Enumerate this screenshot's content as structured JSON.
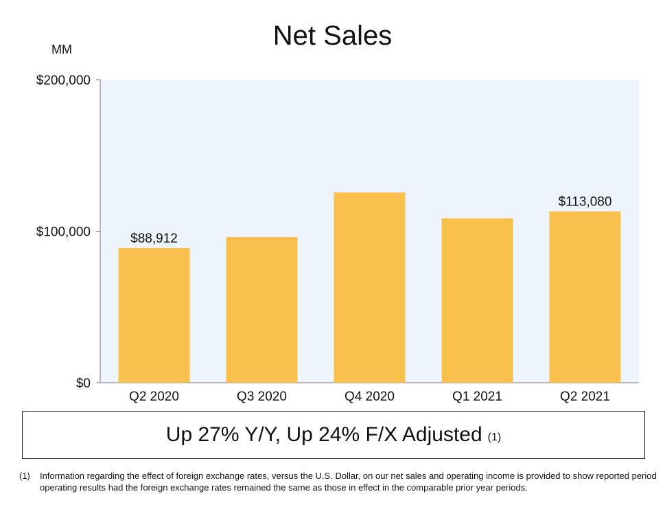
{
  "header": {
    "title": "Net Sales",
    "unit_label": "MM"
  },
  "chart_data": {
    "type": "bar",
    "title": "Net Sales",
    "xlabel": "",
    "ylabel": "MM",
    "categories": [
      "Q2 2020",
      "Q3 2020",
      "Q4 2020",
      "Q1 2021",
      "Q2 2021"
    ],
    "values": [
      88912,
      96145,
      125555,
      108518,
      113080
    ],
    "data_labels": [
      "$88,912",
      "",
      "",
      "",
      "$113,080"
    ],
    "ylim": [
      0,
      200000
    ],
    "yticks": [
      0,
      100000,
      200000
    ],
    "ytick_labels": [
      "$0",
      "$100,000",
      "$200,000"
    ],
    "grid": false,
    "colors": {
      "bar": "#F9C04E",
      "plot_bg": "#EEF4FC",
      "axis": "#777777"
    }
  },
  "summary": {
    "text": "Up 27% Y/Y, Up 24% F/X Adjusted",
    "note": "(1)"
  },
  "footnote": {
    "number": "(1)",
    "text": "Information regarding the effect of foreign exchange rates, versus the U.S. Dollar, on our net sales and operating income is provided to show reported period operating results had the foreign exchange rates remained the same as those in effect in the comparable prior year periods."
  }
}
